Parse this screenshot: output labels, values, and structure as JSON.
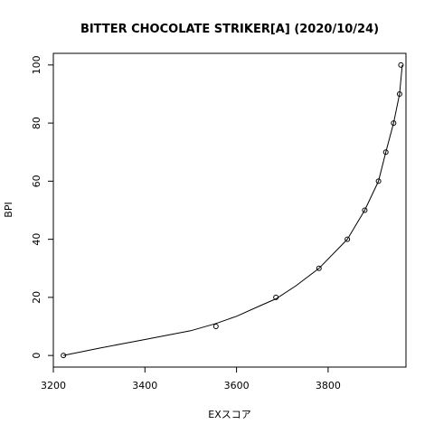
{
  "chart_data": {
    "type": "scatter",
    "title": "BITTER CHOCOLATE STRIKER[A] (2020/10/24)",
    "xlabel": "EXスコア",
    "ylabel": "BPI",
    "xlim": [
      3200,
      3970
    ],
    "ylim": [
      -4,
      104
    ],
    "x_ticks": [
      3200,
      3400,
      3600,
      3800
    ],
    "y_ticks": [
      0,
      20,
      40,
      60,
      80,
      100
    ],
    "grid": false,
    "legend": "none",
    "points": {
      "x": [
        3222,
        3555,
        3686,
        3780,
        3842,
        3880,
        3910,
        3926,
        3943,
        3956,
        3959
      ],
      "y": [
        0,
        10,
        20,
        30,
        40,
        50,
        60,
        70,
        80,
        90,
        100
      ]
    },
    "curve": {
      "x": [
        3222,
        3300,
        3400,
        3500,
        3555,
        3600,
        3650,
        3686,
        3730,
        3780,
        3842,
        3880,
        3910,
        3926,
        3943,
        3956,
        3962
      ],
      "y": [
        0,
        2.5,
        5.5,
        8.5,
        11,
        13.5,
        17,
        19.5,
        24,
        30,
        40,
        50,
        60,
        70,
        80,
        90,
        100
      ]
    },
    "colors": {
      "points": "#000000",
      "curve": "#000000",
      "frame": "#000000"
    }
  }
}
